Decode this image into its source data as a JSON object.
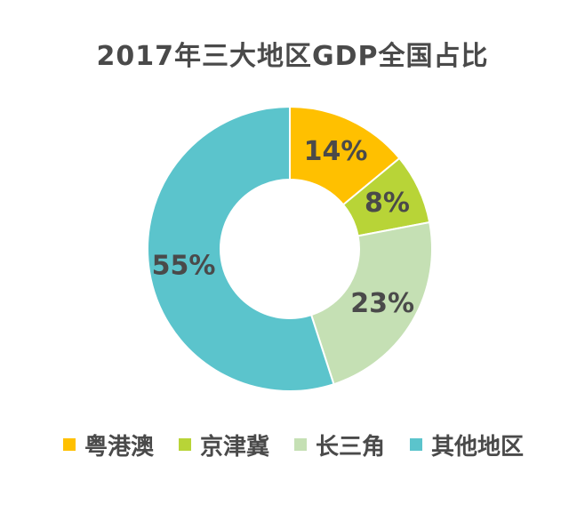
{
  "chart_data": {
    "type": "pie",
    "title": "2017年三大地区GDP全国占比",
    "categories": [
      "粤港澳",
      "京津冀",
      "长三角",
      "其他地区"
    ],
    "values": [
      14,
      8,
      23,
      55
    ],
    "data_labels": [
      "14%",
      "8%",
      "23%",
      "55%"
    ],
    "colors": [
      "#FFC000",
      "#B8D437",
      "#C5E0B4",
      "#5BC4CC"
    ],
    "donut": true,
    "legend_position": "bottom"
  }
}
